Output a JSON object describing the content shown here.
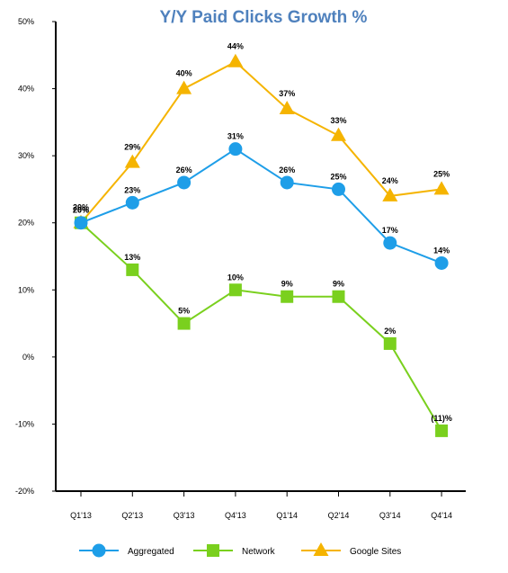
{
  "chart_data": {
    "type": "line",
    "title": "Y/Y Paid Clicks Growth %",
    "categories": [
      "Q1'13",
      "Q2'13",
      "Q3'13",
      "Q4'13",
      "Q1'14",
      "Q2'14",
      "Q3'14",
      "Q4'14"
    ],
    "ylim": [
      -20,
      50
    ],
    "yticks": [
      "-20%",
      "-10%",
      "0%",
      "10%",
      "20%",
      "30%",
      "40%",
      "50%"
    ],
    "grid": false,
    "legend_position": "bottom",
    "series": [
      {
        "name": "Aggregated",
        "marker": "circle",
        "color": "#1e9ee8",
        "values": [
          20,
          23,
          26,
          31,
          26,
          25,
          17,
          14
        ],
        "labels": [
          "20%",
          "23%",
          "26%",
          "31%",
          "26%",
          "25%",
          "17%",
          "14%"
        ]
      },
      {
        "name": "Network",
        "marker": "square",
        "color": "#7ad01e",
        "values": [
          20,
          13,
          5,
          10,
          9,
          9,
          2,
          -11
        ],
        "labels": [
          "20%",
          "13%",
          "5%",
          "10%",
          "9%",
          "9%",
          "2%",
          "(11)%"
        ]
      },
      {
        "name": "Google Sites",
        "marker": "triangle",
        "color": "#f5b400",
        "values": [
          20,
          29,
          40,
          44,
          37,
          33,
          24,
          25
        ],
        "labels": [
          "20%",
          "29%",
          "40%",
          "44%",
          "37%",
          "33%",
          "24%",
          "25%"
        ]
      }
    ]
  }
}
